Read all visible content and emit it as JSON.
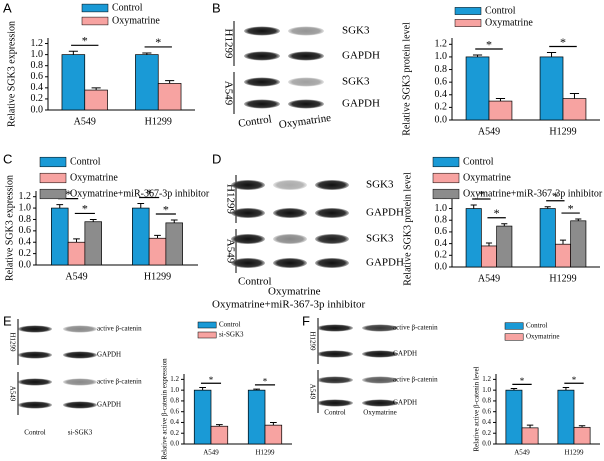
{
  "panel_letters": [
    "A",
    "B",
    "C",
    "D",
    "E",
    "F"
  ],
  "blots": [
    {
      "cell_lines": [
        "H1299",
        "A549"
      ],
      "bands": [
        "SGK3",
        "GAPDH"
      ],
      "lanes": [
        "Control",
        "Oxymatrine"
      ]
    },
    {
      "cell_lines": [
        "H1299",
        "A549"
      ],
      "bands": [
        "SGK3",
        "GAPDH"
      ],
      "lanes": [
        "Control",
        "Oxymatrine",
        "Oxymatrine+miR-367-3p inhibitor"
      ]
    },
    {
      "cell_lines": [
        "H1299",
        "A549"
      ],
      "bands": [
        "active β-catenin",
        "GAPDH"
      ],
      "lanes": [
        "Control",
        "si-SGK3"
      ]
    },
    {
      "cell_lines": [
        "H1299",
        "A549"
      ],
      "bands": [
        "active β-catenin",
        "GAPDH"
      ],
      "lanes": [
        "Control",
        "Oxymatrine"
      ]
    }
  ],
  "chart_data": [
    {
      "type": "bar",
      "ylabel": "Relative SGK3 expression",
      "categories": [
        "A549",
        "H1299"
      ],
      "series": [
        {
          "name": "Control",
          "color": "#1a9ad6",
          "values": [
            1.0,
            1.0
          ],
          "errors": [
            0.06,
            0.03
          ]
        },
        {
          "name": "Oxymatrine",
          "color": "#f7a3a1",
          "values": [
            0.36,
            0.48
          ],
          "errors": [
            0.04,
            0.05
          ]
        }
      ],
      "ylim": [
        0,
        1.3
      ],
      "yticks": [
        {
          "value": 0,
          "label": "0.0"
        },
        {
          "value": 0.2,
          "label": "0.2"
        },
        {
          "value": 0.4,
          "label": "0.4"
        },
        {
          "value": 0.6,
          "label": "0.6"
        },
        {
          "value": 0.8,
          "label": "0.8"
        },
        {
          "value": 1.0,
          "label": "1.0"
        },
        {
          "value": 1.2,
          "label": "1.2"
        }
      ],
      "significance": [
        "*",
        "*"
      ]
    },
    {
      "type": "bar",
      "ylabel": "Relative SGK3 protein level",
      "categories": [
        "A549",
        "H1299"
      ],
      "series": [
        {
          "name": "Control",
          "color": "#1a9ad6",
          "values": [
            1.0,
            1.0
          ],
          "errors": [
            0.03,
            0.07
          ]
        },
        {
          "name": "Oxymatrine",
          "color": "#f7a3a1",
          "values": [
            0.3,
            0.34
          ],
          "errors": [
            0.04,
            0.08
          ]
        }
      ],
      "ylim": [
        0,
        1.3
      ],
      "yticks": [
        {
          "value": 0,
          "label": "0.0"
        },
        {
          "value": 0.2,
          "label": "0.2"
        },
        {
          "value": 0.4,
          "label": "0.4"
        },
        {
          "value": 0.6,
          "label": "0.6"
        },
        {
          "value": 0.8,
          "label": "0.8"
        },
        {
          "value": 1.0,
          "label": "1.0"
        },
        {
          "value": 1.2,
          "label": "1.2"
        }
      ],
      "significance": [
        "*",
        "*"
      ]
    },
    {
      "type": "bar",
      "ylabel": "Relative SGK3 expression",
      "categories": [
        "A549",
        "H1299"
      ],
      "series": [
        {
          "name": "Control",
          "color": "#1a9ad6",
          "values": [
            1.0,
            1.0
          ],
          "errors": [
            0.06,
            0.08
          ]
        },
        {
          "name": "Oxymatrine",
          "color": "#f7a3a1",
          "values": [
            0.4,
            0.47
          ],
          "errors": [
            0.06,
            0.05
          ]
        },
        {
          "name": "Oxymatrine+miR-367-3p inhibitor",
          "color": "#8c8c8c",
          "values": [
            0.76,
            0.74
          ],
          "errors": [
            0.04,
            0.05
          ]
        }
      ],
      "ylim": [
        0,
        1.3
      ],
      "yticks": [
        {
          "value": 0,
          "label": "0.0"
        },
        {
          "value": 0.2,
          "label": "0.2"
        },
        {
          "value": 0.4,
          "label": "0.4"
        },
        {
          "value": 0.6,
          "label": "0.6"
        },
        {
          "value": 0.8,
          "label": "0.8"
        },
        {
          "value": 1.0,
          "label": "1.0"
        },
        {
          "value": 1.2,
          "label": "1.2"
        }
      ],
      "significance": [
        "*",
        "*",
        "*",
        "*"
      ]
    },
    {
      "type": "bar",
      "ylabel": "Relative SGK3 protein level",
      "categories": [
        "A549",
        "H1299"
      ],
      "series": [
        {
          "name": "Control",
          "color": "#1a9ad6",
          "values": [
            1.0,
            1.0
          ],
          "errors": [
            0.06,
            0.03
          ]
        },
        {
          "name": "Oxymatrine",
          "color": "#f7a3a1",
          "values": [
            0.36,
            0.39
          ],
          "errors": [
            0.05,
            0.07
          ]
        },
        {
          "name": "Oxymatrine+miR-367-3p inhibitor",
          "color": "#8c8c8c",
          "values": [
            0.7,
            0.79
          ],
          "errors": [
            0.04,
            0.03
          ]
        }
      ],
      "ylim": [
        0,
        1.3
      ],
      "yticks": [
        {
          "value": 0,
          "label": "0.0"
        },
        {
          "value": 0.2,
          "label": "0.2"
        },
        {
          "value": 0.4,
          "label": "0.4"
        },
        {
          "value": 0.6,
          "label": "0.6"
        },
        {
          "value": 0.8,
          "label": "0.8"
        },
        {
          "value": 1.0,
          "label": "1.0"
        },
        {
          "value": 1.2,
          "label": "1.2"
        }
      ],
      "significance": [
        "*",
        "*",
        "*",
        "*"
      ]
    },
    {
      "type": "bar",
      "ylabel": "Relative active β-catenin expression",
      "categories": [
        "A549",
        "H1299"
      ],
      "series": [
        {
          "name": "Control",
          "color": "#1a9ad6",
          "values": [
            1.0,
            1.0
          ],
          "errors": [
            0.05,
            0.02
          ]
        },
        {
          "name": "si-SGK3",
          "color": "#f7a3a1",
          "values": [
            0.33,
            0.35
          ],
          "errors": [
            0.03,
            0.05
          ]
        }
      ],
      "ylim": [
        0,
        1.3
      ],
      "yticks": [
        {
          "value": 0,
          "label": "0.0"
        },
        {
          "value": 0.2,
          "label": "0.2"
        },
        {
          "value": 0.4,
          "label": "0.4"
        },
        {
          "value": 0.6,
          "label": "0.6"
        },
        {
          "value": 0.8,
          "label": "0.8"
        },
        {
          "value": 1.0,
          "label": "1.0"
        },
        {
          "value": 1.2,
          "label": "1.2"
        }
      ],
      "significance": [
        "*",
        "*"
      ]
    },
    {
      "type": "bar",
      "ylabel": "Relative active β-catenin level",
      "categories": [
        "A549",
        "H1299"
      ],
      "series": [
        {
          "name": "Control",
          "color": "#1a9ad6",
          "values": [
            1.0,
            1.0
          ],
          "errors": [
            0.03,
            0.05
          ]
        },
        {
          "name": "Oxymatrine",
          "color": "#f7a3a1",
          "values": [
            0.3,
            0.31
          ],
          "errors": [
            0.05,
            0.03
          ]
        }
      ],
      "ylim": [
        0,
        1.3
      ],
      "yticks": [
        {
          "value": 0,
          "label": "0.0"
        },
        {
          "value": 0.2,
          "label": "0.2"
        },
        {
          "value": 0.4,
          "label": "0.4"
        },
        {
          "value": 0.6,
          "label": "0.6"
        },
        {
          "value": 0.8,
          "label": "0.8"
        },
        {
          "value": 1.0,
          "label": "1.0"
        },
        {
          "value": 1.2,
          "label": "1.2"
        }
      ],
      "significance": [
        "*",
        "*"
      ]
    }
  ]
}
